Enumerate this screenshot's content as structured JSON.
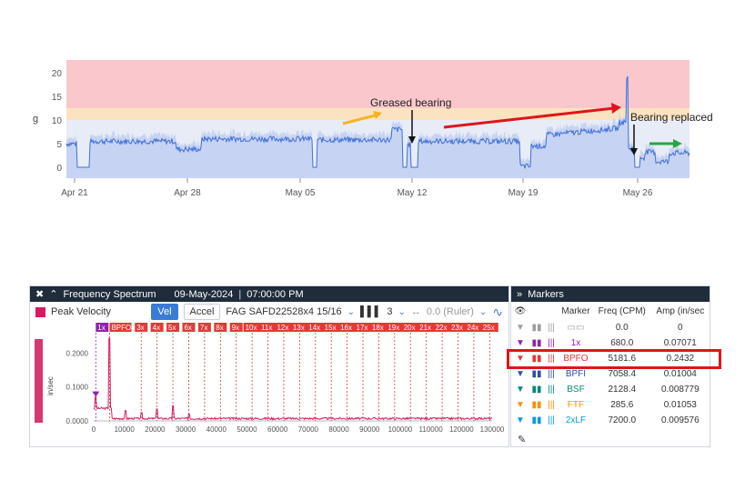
{
  "trend": {
    "y_axis_label": "g",
    "y_ticks": [
      "20",
      "15",
      "10",
      "5",
      "0"
    ],
    "x_ticks": [
      "Apr 21",
      "Apr 28",
      "May 05",
      "May 12",
      "May 19",
      "May 26"
    ],
    "annotations": {
      "greased": "Greased bearing",
      "replaced": "Bearing replaced"
    },
    "colors": {
      "alarm": "#f9c7cc",
      "alert": "#fbe3c2",
      "fill": "#c7d3f3",
      "line": "#3f6fd8"
    }
  },
  "spectrum": {
    "header": {
      "title": "Frequency Spectrum",
      "date": "09-May-2024",
      "time": "07:00:00 PM"
    },
    "toolbar": {
      "legend": "Peak Velocity",
      "vel": "Vel",
      "accel": "Accel",
      "bearing": "FAG SAFD22528x4 15/16",
      "harmonics": "3",
      "ruler": "0.0 (Ruler)"
    },
    "y_axis_label": "in/sec",
    "y_ticks": [
      "0.2000",
      "0.1000",
      "0.0000"
    ],
    "x_ticks": [
      "0",
      "10000",
      "20000",
      "30000",
      "40000",
      "50000",
      "60000",
      "70000",
      "80000",
      "90000",
      "100000",
      "110000",
      "120000",
      "130000"
    ],
    "harmonic_labels": [
      "1x",
      "BPFO",
      "3x",
      "4x",
      "5x",
      "6x",
      "7x",
      "8x",
      "9x",
      "10x",
      "11x",
      "12x",
      "13x",
      "14x",
      "15x",
      "16x",
      "17x",
      "18x",
      "19x",
      "20x",
      "21x",
      "22x",
      "23x",
      "24x",
      "25x"
    ]
  },
  "markers": {
    "title": "Markers",
    "columns": [
      "Marker",
      "Freq (CPM)",
      "Amp (in/sec"
    ],
    "rows": [
      {
        "name": "",
        "freq": "0.0",
        "amp": "0",
        "color": "#9e9e9e"
      },
      {
        "name": "1x",
        "freq": "680.0",
        "amp": "0.07071",
        "color": "#8e24aa"
      },
      {
        "name": "BPFO",
        "freq": "5181.6",
        "amp": "0.2432",
        "color": "#e53935"
      },
      {
        "name": "BPFI",
        "freq": "7058.4",
        "amp": "0.01004",
        "color": "#3949ab"
      },
      {
        "name": "BSF",
        "freq": "2128.4",
        "amp": "0.008779",
        "color": "#00897b"
      },
      {
        "name": "FTF",
        "freq": "285.6",
        "amp": "0.01053",
        "color": "#fb8c00"
      },
      {
        "name": "2xLF",
        "freq": "7200.0",
        "amp": "0.009576",
        "color": "#039be5"
      }
    ]
  },
  "chart_data": [
    {
      "type": "area",
      "ylabel": "g",
      "ylim": [
        0,
        23
      ],
      "x": [
        "Apr 21",
        "Apr 28",
        "May 05",
        "May 12",
        "May 19",
        "May 26"
      ],
      "thresholds": {
        "alert": 10,
        "alarm": 12.5
      },
      "series_shape": "overall vibration mostly 4-7 g with drops to 0, rising before May 12 and peaking near 20 g before May 26"
    },
    {
      "type": "line",
      "xlabel": "",
      "ylabel": "in/sec",
      "xlim": [
        0,
        130000
      ],
      "ylim": [
        0,
        0.26
      ],
      "series": [
        {
          "name": "Peak Velocity",
          "x": [
            680,
            5181.6,
            10363,
            15545,
            20727,
            25908,
            31090
          ],
          "y": [
            0.07071,
            0.2432,
            0.03,
            0.025,
            0.035,
            0.045,
            0.02
          ]
        }
      ]
    }
  ]
}
